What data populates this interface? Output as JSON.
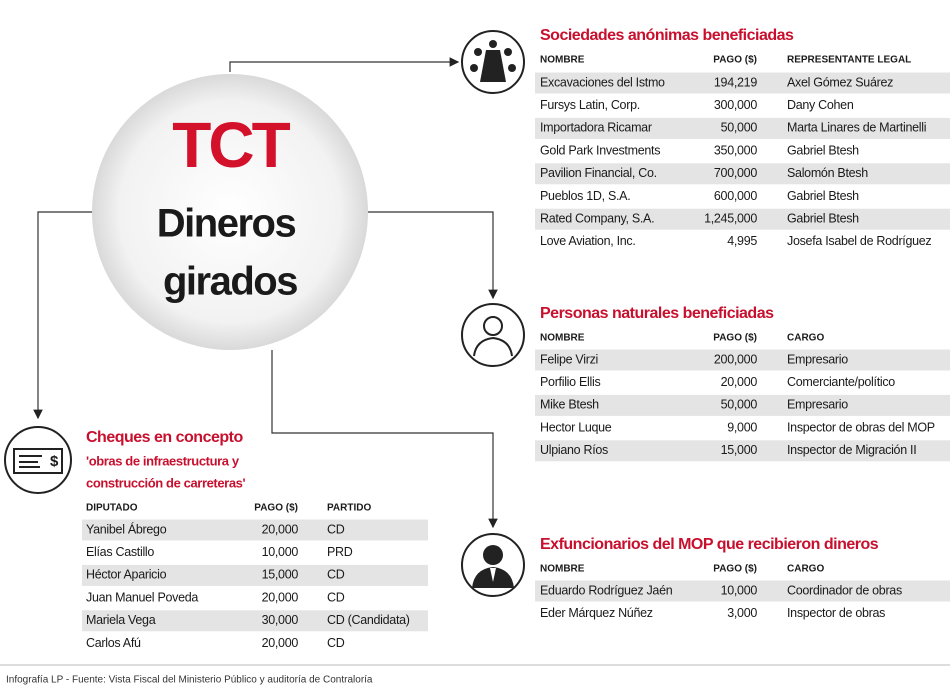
{
  "center": {
    "title": "TCT",
    "subtitle_lines": [
      "Dineros",
      "girados"
    ]
  },
  "sections": [
    {
      "title": "Sociedades anónimas beneficiadas",
      "headers": [
        "NOMBRE",
        "PAGO ($)",
        "REPRESENTANTE LEGAL"
      ],
      "rows": [
        [
          "Excavaciones del Istmo",
          "194,219",
          "Axel Gómez Suárez"
        ],
        [
          "Fursys Latin, Corp.",
          "300,000",
          "Dany Cohen"
        ],
        [
          "Importadora Ricamar",
          "50,000",
          "Marta Linares de Martinelli"
        ],
        [
          "Gold Park Investments",
          "350,000",
          "Gabriel Btesh"
        ],
        [
          "Pavilion Financial, Co.",
          "700,000",
          "Salomón Btesh"
        ],
        [
          "Pueblos 1D, S.A.",
          "600,000",
          "Gabriel Btesh"
        ],
        [
          "Rated Company, S.A.",
          "1,245,000",
          "Gabriel Btesh"
        ],
        [
          "Love Aviation, Inc.",
          "4,995",
          "Josefa Isabel de Rodríguez"
        ]
      ]
    },
    {
      "title": "Personas naturales beneficiadas",
      "headers": [
        "NOMBRE",
        "PAGO ($)",
        "CARGO"
      ],
      "rows": [
        [
          "Felipe Virzi",
          "200,000",
          "Empresario"
        ],
        [
          "Porfilio Ellis",
          "20,000",
          "Comerciante/político"
        ],
        [
          "Mike Btesh",
          "50,000",
          "Empresario"
        ],
        [
          "Hector Luque",
          "9,000",
          "Inspector de obras del MOP"
        ],
        [
          "Ulpiano Ríos",
          "15,000",
          "Inspector de Migración II"
        ]
      ]
    },
    {
      "title": "Exfuncionarios del MOP que recibieron dineros",
      "headers": [
        "NOMBRE",
        "PAGO ($)",
        "CARGO"
      ],
      "rows": [
        [
          "Eduardo Rodríguez Jaén",
          "10,000",
          "Coordinador de obras"
        ],
        [
          "Eder Márquez Núñez",
          "3,000",
          "Inspector de obras"
        ]
      ]
    },
    {
      "title": "Cheques en concepto",
      "subtitle_lines": [
        "'obras de infraestructura y",
        "construcción de carreteras'"
      ],
      "headers": [
        "DIPUTADO",
        "PAGO ($)",
        "PARTIDO"
      ],
      "rows": [
        [
          "Yanibel Ábrego",
          "20,000",
          "CD"
        ],
        [
          "Elías Castillo",
          "10,000",
          "PRD"
        ],
        [
          "Héctor Aparicio",
          "15,000",
          "CD"
        ],
        [
          "Juan Manuel Poveda",
          "20,000",
          "CD"
        ],
        [
          "Mariela Vega",
          "30,000",
          "CD (Candidata)"
        ],
        [
          "Carlos Afú",
          "20,000",
          "CD"
        ]
      ]
    }
  ],
  "footer": "Infografía LP  - Fuente: Vista Fiscal del Ministerio Público y auditoría de Contraloría"
}
